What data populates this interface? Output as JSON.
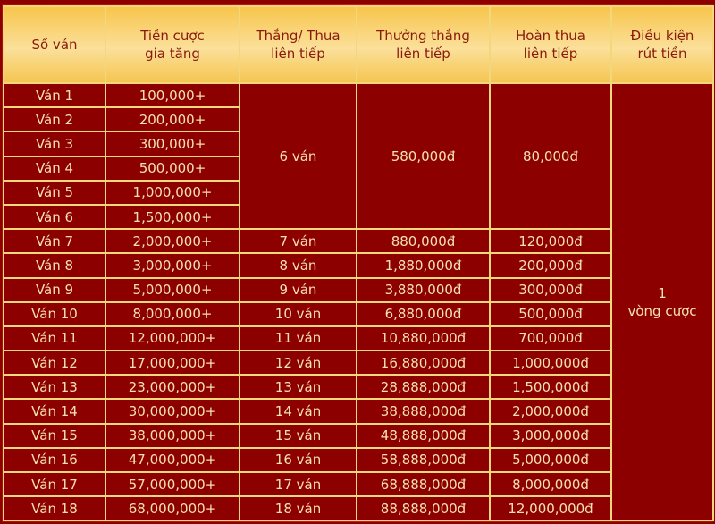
{
  "headers": [
    "Số ván",
    "Tiền cược\ngia tăng",
    "Thắng/ Thua\nliên tiếp",
    "Thưởng thắng\nliên tiếp",
    "Hoàn thua\nliên tiếp",
    "Điều kiện\nrút tiền"
  ],
  "rows": [
    {
      "round": "Ván 1",
      "bet": "100,000+"
    },
    {
      "round": "Ván 2",
      "bet": "200,000+"
    },
    {
      "round": "Ván 3",
      "bet": "300,000+"
    },
    {
      "round": "Ván 4",
      "bet": "500,000+"
    },
    {
      "round": "Ván 5",
      "bet": "1,000,000+"
    },
    {
      "round": "Ván 6",
      "bet": "1,500,000+"
    },
    {
      "round": "Ván 7",
      "bet": "2,000,000+",
      "streak": "7 ván",
      "win_bonus": "880,000đ",
      "loss_refund": "120,000đ"
    },
    {
      "round": "Ván 8",
      "bet": "3,000,000+",
      "streak": "8 ván",
      "win_bonus": "1,880,000đ",
      "loss_refund": "200,000đ"
    },
    {
      "round": "Ván 9",
      "bet": "5,000,000+",
      "streak": "9 ván",
      "win_bonus": "3,880,000đ",
      "loss_refund": "300,000đ"
    },
    {
      "round": "Ván 10",
      "bet": "8,000,000+",
      "streak": "10 ván",
      "win_bonus": "6,880,000đ",
      "loss_refund": "500,000đ"
    },
    {
      "round": "Ván 11",
      "bet": "12,000,000+",
      "streak": "11 ván",
      "win_bonus": "10,880,000đ",
      "loss_refund": "700,000đ"
    },
    {
      "round": "Ván 12",
      "bet": "17,000,000+",
      "streak": "12 ván",
      "win_bonus": "16,880,000đ",
      "loss_refund": "1,000,000đ"
    },
    {
      "round": "Ván 13",
      "bet": "23,000,000+",
      "streak": "13 ván",
      "win_bonus": "28,888,000đ",
      "loss_refund": "1,500,000đ"
    },
    {
      "round": "Ván 14",
      "bet": "30,000,000+",
      "streak": "14 ván",
      "win_bonus": "38,888,000đ",
      "loss_refund": "2,000,000đ"
    },
    {
      "round": "Ván 15",
      "bet": "38,000,000+",
      "streak": "15 ván",
      "win_bonus": "48,888,000đ",
      "loss_refund": "3,000,000đ"
    },
    {
      "round": "Ván 16",
      "bet": "47,000,000+",
      "streak": "16 ván",
      "win_bonus": "58,888,000đ",
      "loss_refund": "5,000,000đ"
    },
    {
      "round": "Ván 17",
      "bet": "57,000,000+",
      "streak": "17 ván",
      "win_bonus": "68,888,000đ",
      "loss_refund": "8,000,000đ"
    },
    {
      "round": "Ván 18",
      "bet": "68,000,000+",
      "streak": "18 ván",
      "win_bonus": "88,888,000đ",
      "loss_refund": "12,000,000đ"
    }
  ],
  "merged_first_six": {
    "streak": "6 ván",
    "win_bonus": "580,000đ",
    "loss_refund": "80,000đ"
  },
  "withdraw_condition": "1\nvòng cược",
  "colors": {
    "header_gold": "#f7c54c",
    "header_text": "#8a1a0c",
    "body_red": "#8c0000",
    "body_text": "#f5e2b0",
    "border": "#f2d77c"
  }
}
